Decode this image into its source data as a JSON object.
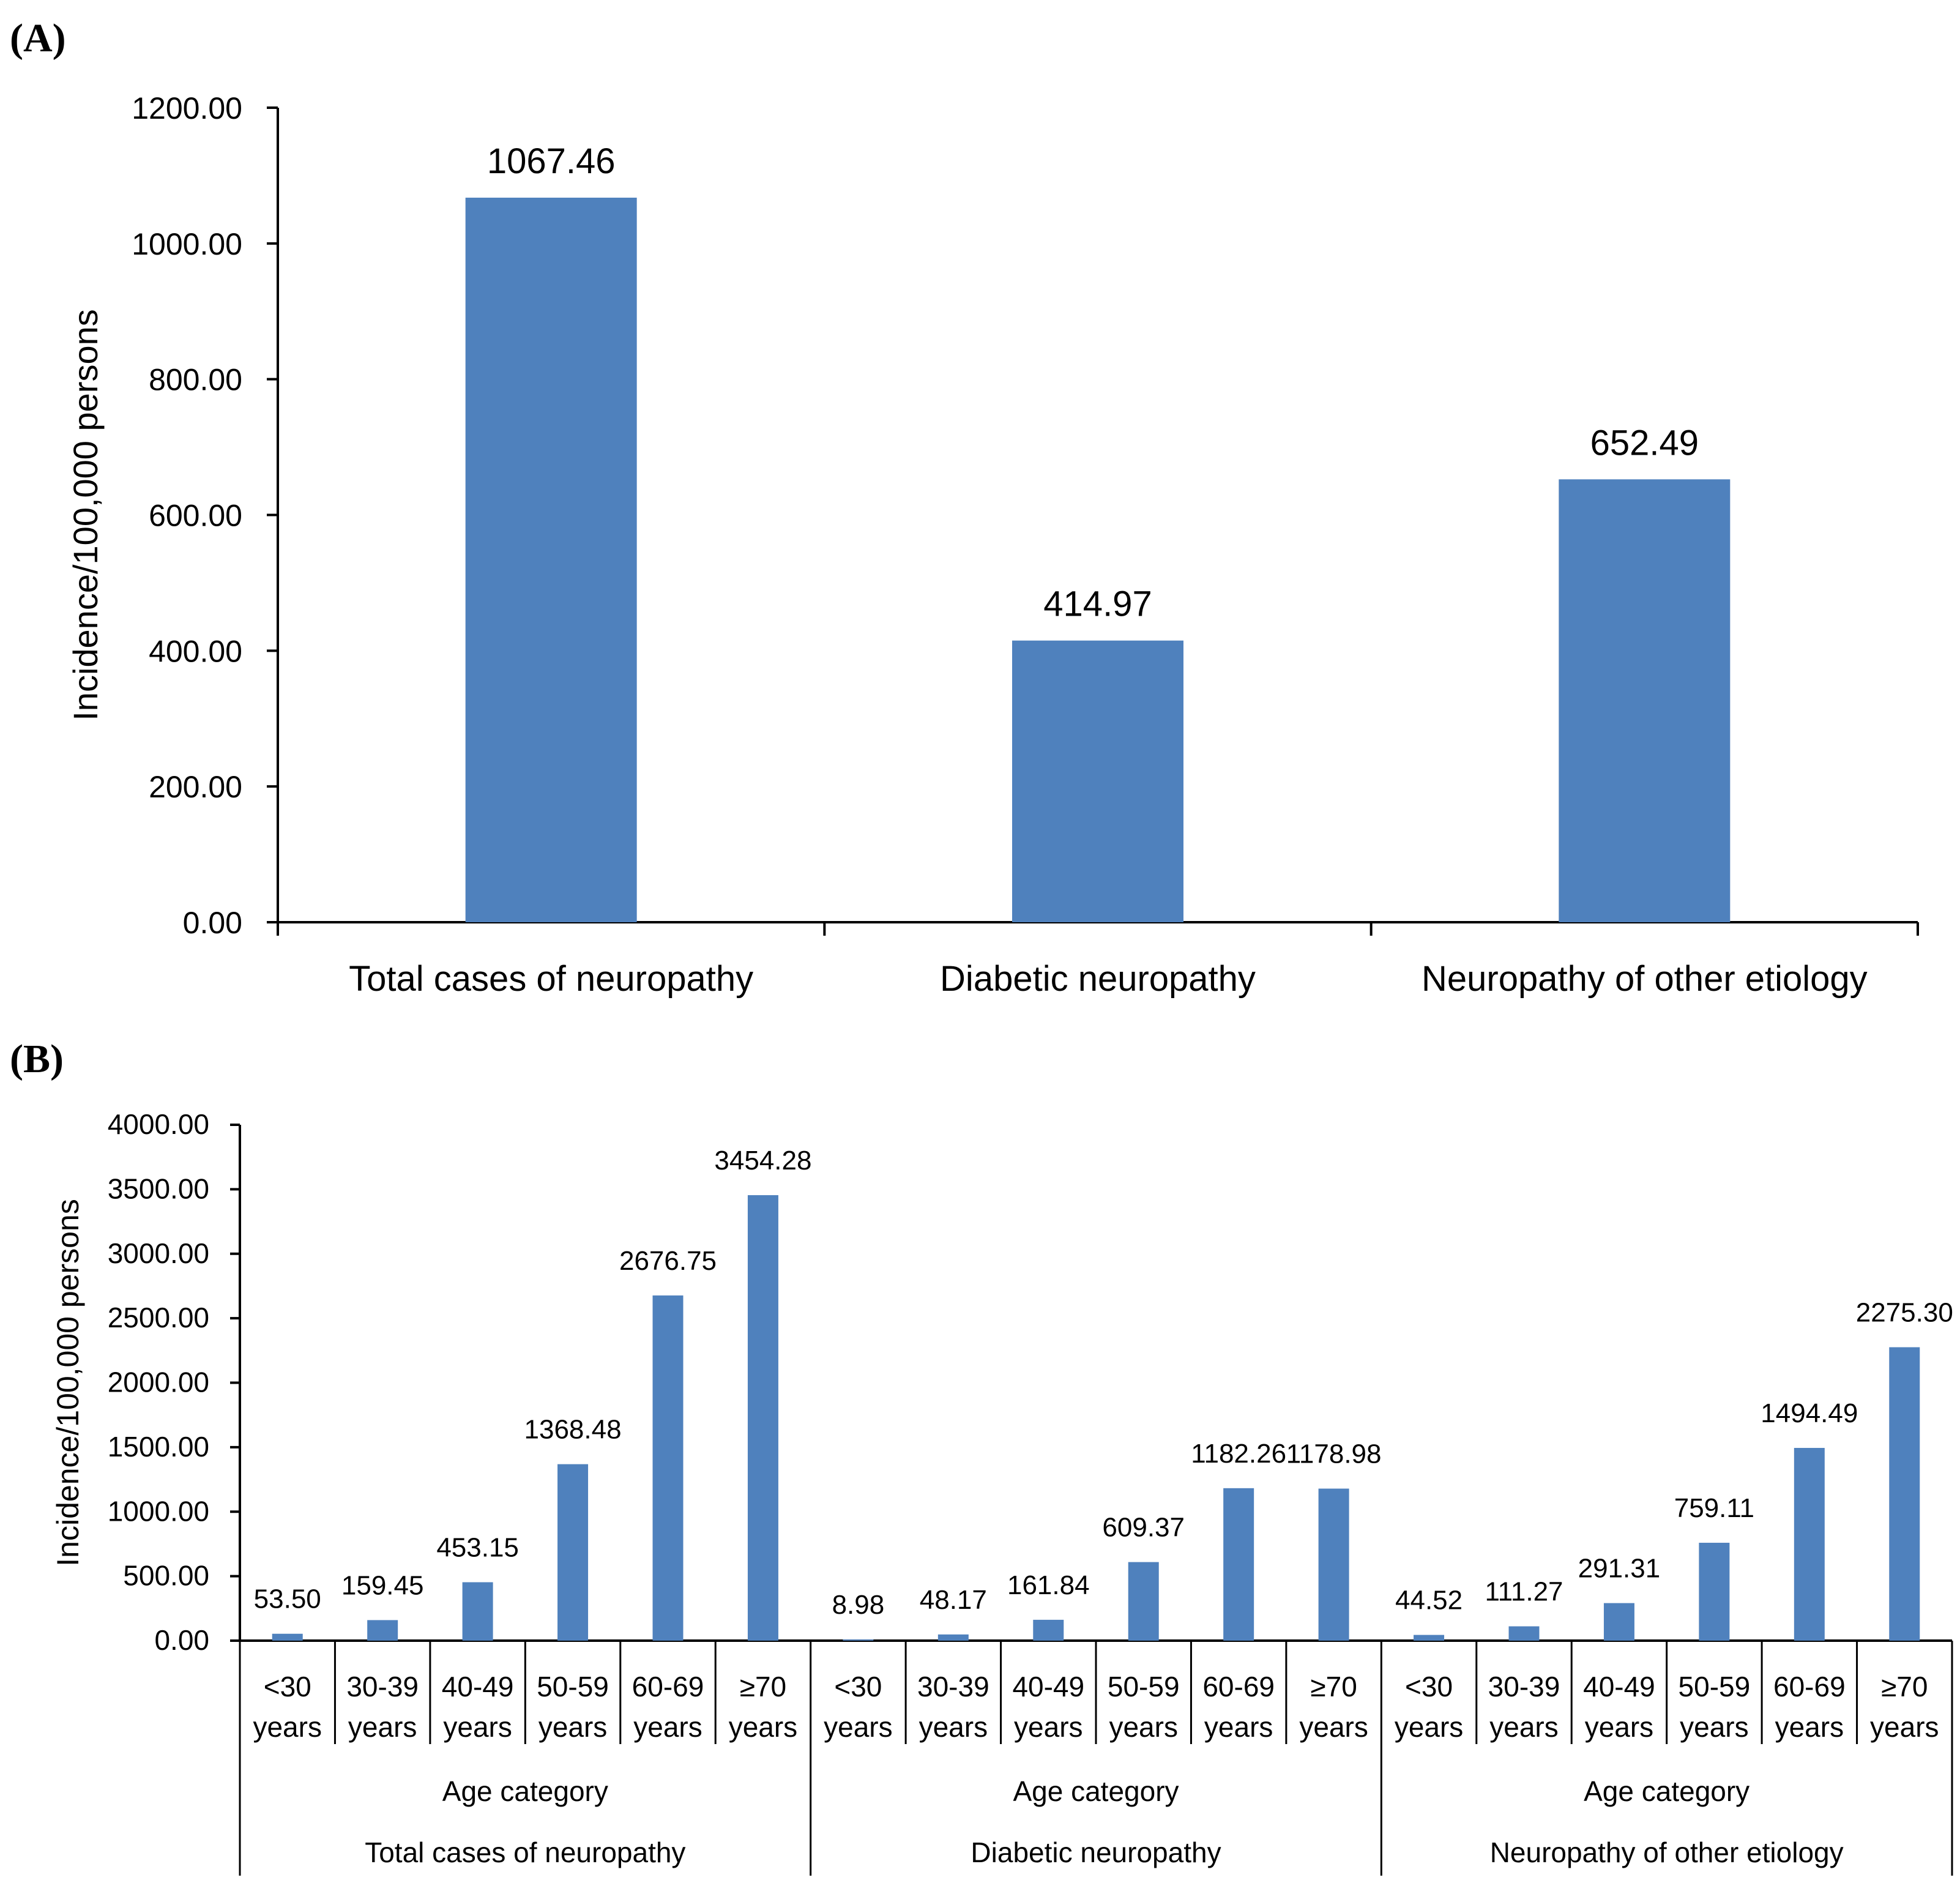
{
  "panels": [
    {
      "label": "(A)"
    },
    {
      "label": "(B)"
    }
  ],
  "colors": {
    "bar": "#4F81BD",
    "axis": "#000000",
    "text": "#000000"
  },
  "chart_data": [
    {
      "type": "bar",
      "ylabel": "Incidence/100,000  persons",
      "ylim": [
        0,
        1200
      ],
      "yticks": [
        "0.00",
        "200.00",
        "400.00",
        "600.00",
        "800.00",
        "1000.00",
        "1200.00"
      ],
      "categories": [
        "Total cases of neuropathy",
        "Diabetic neuropathy",
        "Neuropathy of other etiology"
      ],
      "values": [
        1067.46,
        414.97,
        652.49
      ],
      "value_labels": [
        "1067.46",
        "414.97",
        "652.49"
      ]
    },
    {
      "type": "bar",
      "ylabel": "Incidence/100,000  persons",
      "ylim": [
        0,
        4000
      ],
      "yticks": [
        "0.00",
        "500.00",
        "1000.00",
        "1500.00",
        "2000.00",
        "2500.00",
        "3000.00",
        "3500.00",
        "4000.00"
      ],
      "age_groups": [
        {
          "line1": "<30",
          "line2": "years"
        },
        {
          "line1": "30-39",
          "line2": "years"
        },
        {
          "line1": "40-49",
          "line2": "years"
        },
        {
          "line1": "50-59",
          "line2": "years"
        },
        {
          "line1": "60-69",
          "line2": "years"
        },
        {
          "line1": "≥70",
          "line2": "years"
        }
      ],
      "group_caption": "Age category",
      "series": [
        {
          "name": "Total cases of neuropathy",
          "values": [
            53.5,
            159.45,
            453.15,
            1368.48,
            2676.75,
            3454.28
          ],
          "value_labels": [
            "53.50",
            "159.45",
            "453.15",
            "1368.48",
            "2676.75",
            "3454.28"
          ]
        },
        {
          "name": "Diabetic neuropathy",
          "values": [
            8.98,
            48.17,
            161.84,
            609.37,
            1182.26,
            1178.98
          ],
          "value_labels": [
            "8.98",
            "48.17",
            "161.84",
            "609.37",
            "1182.26",
            "1178.98"
          ]
        },
        {
          "name": "Neuropathy of other etiology",
          "values": [
            44.52,
            111.27,
            291.31,
            759.11,
            1494.49,
            2275.3
          ],
          "value_labels": [
            "44.52",
            "111.27",
            "291.31",
            "759.11",
            "1494.49",
            "2275.30"
          ]
        }
      ]
    }
  ]
}
